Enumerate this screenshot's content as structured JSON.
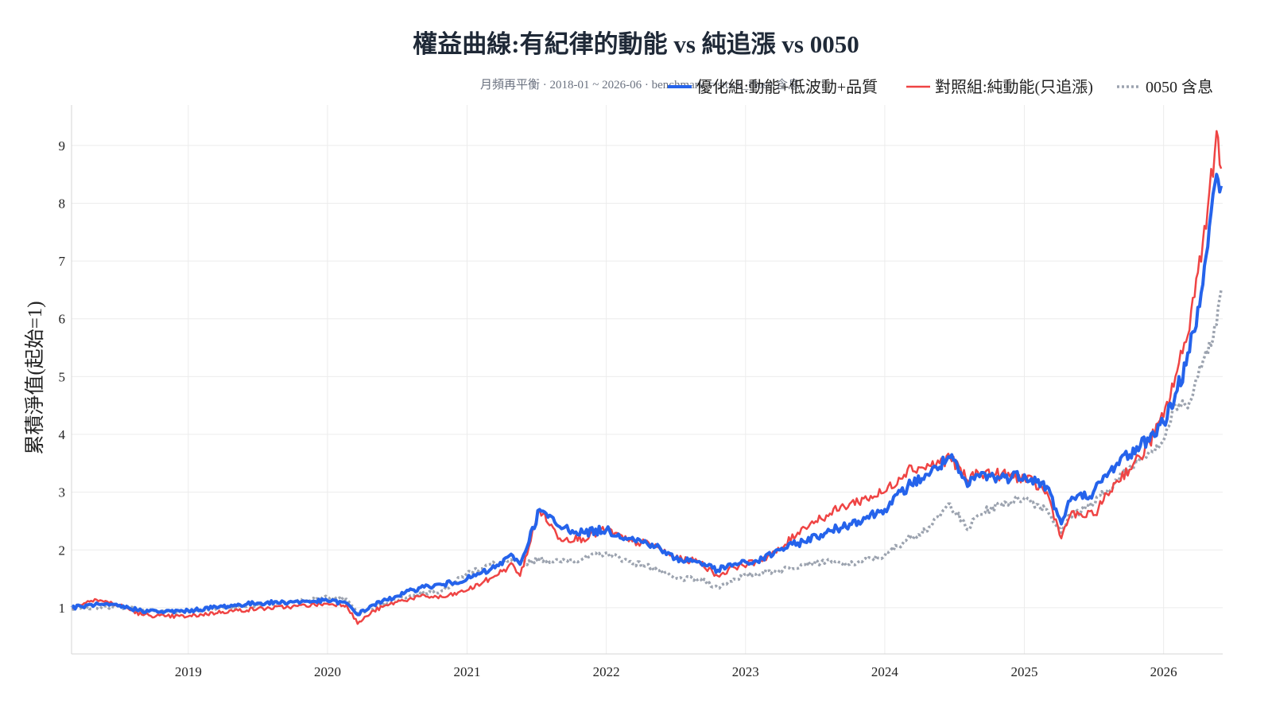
{
  "chart_data": {
    "type": "line",
    "title": "權益曲線:有紀律的動能 vs 純追漲 vs 0050",
    "subtitle": "月頻再平衡 · 2018-01 ~ 2026-06 · benchmark = stock_close 含息",
    "xlabel": "",
    "ylabel": "累積淨值(起始=1)",
    "xlim": [
      "2018-03-01",
      "2026-06-05"
    ],
    "ylim": [
      0.2,
      9.7
    ],
    "x_ticks": [
      "2019",
      "2020",
      "2021",
      "2022",
      "2023",
      "2024",
      "2025",
      "2026"
    ],
    "y_ticks": [
      1,
      2,
      3,
      4,
      5,
      6,
      7,
      8,
      9
    ],
    "grid": true,
    "legend_position": "top-right",
    "series": [
      {
        "name": "優化組:動能+低波動+品質",
        "color": "#2563eb",
        "style": "solid",
        "points": [
          [
            "2018-03-01",
            1.0
          ],
          [
            "2018-05-01",
            1.05
          ],
          [
            "2018-07-01",
            1.03
          ],
          [
            "2018-09-01",
            0.95
          ],
          [
            "2018-11-01",
            0.93
          ],
          [
            "2019-01-01",
            0.95
          ],
          [
            "2019-04-01",
            1.02
          ],
          [
            "2019-07-01",
            1.08
          ],
          [
            "2019-10-01",
            1.1
          ],
          [
            "2020-01-01",
            1.12
          ],
          [
            "2020-02-20",
            1.08
          ],
          [
            "2020-03-20",
            0.88
          ],
          [
            "2020-05-01",
            1.05
          ],
          [
            "2020-07-01",
            1.2
          ],
          [
            "2020-09-01",
            1.35
          ],
          [
            "2020-11-01",
            1.4
          ],
          [
            "2021-01-01",
            1.5
          ],
          [
            "2021-03-01",
            1.65
          ],
          [
            "2021-05-01",
            1.9
          ],
          [
            "2021-05-20",
            1.75
          ],
          [
            "2021-07-10",
            2.7
          ],
          [
            "2021-09-01",
            2.4
          ],
          [
            "2021-11-01",
            2.3
          ],
          [
            "2022-01-01",
            2.35
          ],
          [
            "2022-03-01",
            2.2
          ],
          [
            "2022-05-01",
            2.1
          ],
          [
            "2022-07-01",
            1.85
          ],
          [
            "2022-09-01",
            1.8
          ],
          [
            "2022-10-20",
            1.65
          ],
          [
            "2022-12-01",
            1.75
          ],
          [
            "2023-02-01",
            1.8
          ],
          [
            "2023-04-01",
            2.0
          ],
          [
            "2023-06-01",
            2.15
          ],
          [
            "2023-08-01",
            2.3
          ],
          [
            "2023-10-01",
            2.45
          ],
          [
            "2024-01-01",
            2.7
          ],
          [
            "2024-03-01",
            3.1
          ],
          [
            "2024-05-01",
            3.35
          ],
          [
            "2024-06-20",
            3.6
          ],
          [
            "2024-08-05",
            3.1
          ],
          [
            "2024-09-01",
            3.3
          ],
          [
            "2024-11-01",
            3.25
          ],
          [
            "2025-01-01",
            3.3
          ],
          [
            "2025-03-01",
            3.1
          ],
          [
            "2025-04-08",
            2.45
          ],
          [
            "2025-05-01",
            2.85
          ],
          [
            "2025-07-01",
            3.0
          ],
          [
            "2025-09-01",
            3.5
          ],
          [
            "2025-11-01",
            3.8
          ],
          [
            "2026-01-01",
            4.2
          ],
          [
            "2026-02-01",
            4.7
          ],
          [
            "2026-03-01",
            5.2
          ],
          [
            "2026-04-01",
            6.2
          ],
          [
            "2026-05-01",
            7.6
          ],
          [
            "2026-05-20",
            8.5
          ],
          [
            "2026-06-01",
            8.3
          ]
        ]
      },
      {
        "name": "對照組:純動能(只追漲)",
        "color": "#ef4444",
        "style": "solid",
        "points": [
          [
            "2018-03-01",
            1.0
          ],
          [
            "2018-05-01",
            1.15
          ],
          [
            "2018-07-01",
            1.05
          ],
          [
            "2018-09-01",
            0.88
          ],
          [
            "2018-11-01",
            0.85
          ],
          [
            "2019-01-01",
            0.85
          ],
          [
            "2019-04-01",
            0.93
          ],
          [
            "2019-07-01",
            0.98
          ],
          [
            "2019-10-01",
            1.02
          ],
          [
            "2020-01-01",
            1.07
          ],
          [
            "2020-02-20",
            1.05
          ],
          [
            "2020-03-20",
            0.72
          ],
          [
            "2020-05-01",
            0.95
          ],
          [
            "2020-07-01",
            1.1
          ],
          [
            "2020-09-01",
            1.2
          ],
          [
            "2020-11-01",
            1.18
          ],
          [
            "2021-01-01",
            1.3
          ],
          [
            "2021-03-01",
            1.5
          ],
          [
            "2021-05-01",
            1.75
          ],
          [
            "2021-05-20",
            1.55
          ],
          [
            "2021-07-10",
            2.7
          ],
          [
            "2021-09-01",
            2.2
          ],
          [
            "2021-11-01",
            2.2
          ],
          [
            "2022-01-01",
            2.35
          ],
          [
            "2022-03-01",
            2.15
          ],
          [
            "2022-05-01",
            2.1
          ],
          [
            "2022-07-01",
            1.85
          ],
          [
            "2022-09-01",
            1.8
          ],
          [
            "2022-10-20",
            1.55
          ],
          [
            "2022-12-01",
            1.7
          ],
          [
            "2023-02-01",
            1.8
          ],
          [
            "2023-04-01",
            2.0
          ],
          [
            "2023-06-01",
            2.4
          ],
          [
            "2023-08-01",
            2.6
          ],
          [
            "2023-10-01",
            2.8
          ],
          [
            "2024-01-01",
            3.0
          ],
          [
            "2024-03-01",
            3.4
          ],
          [
            "2024-05-01",
            3.45
          ],
          [
            "2024-06-20",
            3.6
          ],
          [
            "2024-08-05",
            3.2
          ],
          [
            "2024-09-01",
            3.35
          ],
          [
            "2024-11-01",
            3.3
          ],
          [
            "2025-01-01",
            3.25
          ],
          [
            "2025-03-01",
            3.0
          ],
          [
            "2025-04-08",
            2.2
          ],
          [
            "2025-05-01",
            2.6
          ],
          [
            "2025-07-01",
            2.6
          ],
          [
            "2025-09-01",
            3.2
          ],
          [
            "2025-11-01",
            3.6
          ],
          [
            "2026-01-01",
            4.3
          ],
          [
            "2026-02-01",
            5.0
          ],
          [
            "2026-03-01",
            5.6
          ],
          [
            "2026-04-01",
            6.8
          ],
          [
            "2026-05-01",
            8.2
          ],
          [
            "2026-05-20",
            9.25
          ],
          [
            "2026-06-01",
            8.6
          ]
        ]
      },
      {
        "name": "0050 含息",
        "color": "#9ca3af",
        "style": "dotted",
        "points": [
          [
            "2018-03-01",
            0.98
          ],
          [
            "2018-05-01",
            1.0
          ],
          [
            "2018-07-01",
            1.02
          ],
          [
            "2018-09-01",
            0.97
          ],
          [
            "2018-11-01",
            0.93
          ],
          [
            "2019-01-01",
            0.93
          ],
          [
            "2019-04-01",
            1.0
          ],
          [
            "2019-07-01",
            1.05
          ],
          [
            "2019-10-01",
            1.1
          ],
          [
            "2020-01-01",
            1.18
          ],
          [
            "2020-02-20",
            1.15
          ],
          [
            "2020-03-20",
            0.9
          ],
          [
            "2020-05-01",
            1.0
          ],
          [
            "2020-07-01",
            1.15
          ],
          [
            "2020-09-01",
            1.25
          ],
          [
            "2020-11-01",
            1.3
          ],
          [
            "2021-01-01",
            1.6
          ],
          [
            "2021-03-01",
            1.75
          ],
          [
            "2021-05-01",
            1.8
          ],
          [
            "2021-05-20",
            1.75
          ],
          [
            "2021-07-10",
            1.85
          ],
          [
            "2021-09-01",
            1.8
          ],
          [
            "2021-11-01",
            1.85
          ],
          [
            "2022-01-01",
            1.95
          ],
          [
            "2022-03-01",
            1.8
          ],
          [
            "2022-05-01",
            1.7
          ],
          [
            "2022-07-01",
            1.5
          ],
          [
            "2022-09-01",
            1.5
          ],
          [
            "2022-10-20",
            1.35
          ],
          [
            "2022-12-01",
            1.5
          ],
          [
            "2023-02-01",
            1.6
          ],
          [
            "2023-04-01",
            1.65
          ],
          [
            "2023-06-01",
            1.75
          ],
          [
            "2023-08-01",
            1.8
          ],
          [
            "2023-10-01",
            1.75
          ],
          [
            "2024-01-01",
            1.9
          ],
          [
            "2024-03-01",
            2.2
          ],
          [
            "2024-05-01",
            2.4
          ],
          [
            "2024-06-20",
            2.8
          ],
          [
            "2024-08-05",
            2.35
          ],
          [
            "2024-09-01",
            2.6
          ],
          [
            "2024-11-01",
            2.8
          ],
          [
            "2025-01-01",
            2.9
          ],
          [
            "2025-03-01",
            2.7
          ],
          [
            "2025-04-08",
            2.3
          ],
          [
            "2025-05-01",
            2.6
          ],
          [
            "2025-07-01",
            2.8
          ],
          [
            "2025-09-01",
            3.2
          ],
          [
            "2025-11-01",
            3.6
          ],
          [
            "2026-01-01",
            3.9
          ],
          [
            "2026-02-01",
            4.5
          ],
          [
            "2026-03-01",
            4.5
          ],
          [
            "2026-04-01",
            5.0
          ],
          [
            "2026-05-01",
            5.6
          ],
          [
            "2026-05-20",
            5.9
          ],
          [
            "2026-06-01",
            6.5
          ]
        ]
      }
    ]
  }
}
